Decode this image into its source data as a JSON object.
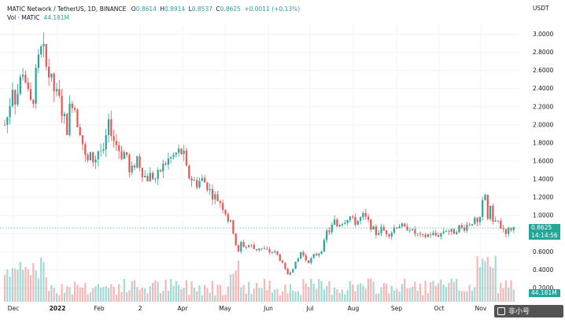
{
  "header": {
    "symbol_line": "MATIC Network / TetherUS, 1D, BINANCE",
    "ohlc": [
      {
        "label": "O",
        "value": "0.8614"
      },
      {
        "label": "H",
        "value": "0.8914"
      },
      {
        "label": "L",
        "value": "0.8537"
      },
      {
        "label": "C",
        "value": "0.8625"
      }
    ],
    "change": "+0.0011 (+0.13%)",
    "volume_label": "Vol · MATIC",
    "volume_value": "44.181M"
  },
  "badges": {
    "price": "0.8625",
    "countdown": "14:14:56",
    "volume": "44.181M"
  },
  "watermark": "非小号",
  "colors": {
    "up": "#26a69a",
    "down": "#ef5350",
    "grid": "#f0f3fa",
    "text": "#131722"
  },
  "chart_data": {
    "type": "candlestick",
    "currency_label": "USDT",
    "y_ticks": [
      "3.0000",
      "2.8000",
      "2.6000",
      "2.4000",
      "2.2000",
      "2.0000",
      "1.8000",
      "1.6000",
      "1.4000",
      "1.2000",
      "1.0000",
      "0.8000",
      "0.6000",
      "0.4000",
      "0.2000"
    ],
    "ylim": [
      0.1,
      3.1
    ],
    "x_ticks": [
      "Dec",
      "2022",
      "Feb",
      "2",
      "Apr",
      "May",
      "Jun",
      "Jul",
      "Aug",
      "Sep",
      "Oct",
      "Nov"
    ],
    "x_tick_bold": [
      false,
      true,
      false,
      false,
      false,
      false,
      false,
      false,
      false,
      false,
      false,
      false
    ],
    "last_price": 0.8625,
    "grid": true,
    "price_anchors": [
      [
        0,
        1.65
      ],
      [
        4,
        1.95
      ],
      [
        10,
        2.1
      ],
      [
        16,
        2.45
      ],
      [
        20,
        2.25
      ],
      [
        26,
        2.5
      ],
      [
        30,
        2.65
      ],
      [
        34,
        2.4
      ],
      [
        38,
        2.2
      ],
      [
        42,
        2.3
      ],
      [
        46,
        2.55
      ],
      [
        50,
        2.75
      ],
      [
        54,
        2.85
      ],
      [
        58,
        2.65
      ],
      [
        62,
        2.55
      ],
      [
        66,
        2.45
      ],
      [
        70,
        2.35
      ],
      [
        76,
        2.25
      ],
      [
        82,
        2.05
      ],
      [
        86,
        1.95
      ],
      [
        90,
        2.3
      ],
      [
        94,
        2.25
      ],
      [
        98,
        2.05
      ],
      [
        102,
        1.95
      ],
      [
        106,
        1.75
      ],
      [
        110,
        1.55
      ],
      [
        114,
        1.65
      ],
      [
        120,
        1.6
      ],
      [
        126,
        1.75
      ],
      [
        132,
        1.65
      ],
      [
        136,
        1.95
      ],
      [
        140,
        2.0
      ],
      [
        144,
        1.85
      ],
      [
        150,
        1.75
      ],
      [
        156,
        1.65
      ],
      [
        160,
        1.75
      ],
      [
        164,
        1.45
      ],
      [
        168,
        1.5
      ],
      [
        174,
        1.65
      ],
      [
        180,
        1.5
      ],
      [
        186,
        1.4
      ],
      [
        192,
        1.45
      ],
      [
        198,
        1.4
      ],
      [
        204,
        1.5
      ],
      [
        212,
        1.6
      ],
      [
        220,
        1.65
      ],
      [
        226,
        1.7
      ],
      [
        230,
        1.7
      ],
      [
        234,
        1.65
      ],
      [
        238,
        1.45
      ],
      [
        244,
        1.4
      ],
      [
        250,
        1.35
      ],
      [
        256,
        1.4
      ],
      [
        262,
        1.35
      ],
      [
        268,
        1.25
      ],
      [
        274,
        1.2
      ],
      [
        280,
        1.15
      ],
      [
        286,
        1.05
      ],
      [
        290,
        0.95
      ],
      [
        294,
        0.9
      ],
      [
        298,
        0.78
      ],
      [
        302,
        0.55
      ],
      [
        306,
        0.7
      ],
      [
        312,
        0.65
      ],
      [
        318,
        0.68
      ],
      [
        324,
        0.62
      ],
      [
        330,
        0.65
      ],
      [
        336,
        0.62
      ],
      [
        342,
        0.6
      ],
      [
        348,
        0.6
      ],
      [
        354,
        0.55
      ],
      [
        358,
        0.48
      ],
      [
        362,
        0.4
      ],
      [
        366,
        0.35
      ],
      [
        370,
        0.4
      ],
      [
        374,
        0.45
      ],
      [
        378,
        0.5
      ],
      [
        382,
        0.6
      ],
      [
        386,
        0.55
      ],
      [
        390,
        0.5
      ],
      [
        394,
        0.5
      ],
      [
        398,
        0.55
      ],
      [
        404,
        0.58
      ],
      [
        408,
        0.62
      ],
      [
        412,
        0.7
      ],
      [
        416,
        0.85
      ],
      [
        420,
        0.82
      ],
      [
        424,
        0.95
      ],
      [
        428,
        0.88
      ],
      [
        432,
        0.92
      ],
      [
        438,
        0.95
      ],
      [
        444,
        1.0
      ],
      [
        450,
        0.92
      ],
      [
        456,
        0.95
      ],
      [
        462,
        1.0
      ],
      [
        466,
        0.95
      ],
      [
        470,
        0.9
      ],
      [
        474,
        0.85
      ],
      [
        478,
        0.8
      ],
      [
        484,
        0.85
      ],
      [
        490,
        0.82
      ],
      [
        496,
        0.8
      ],
      [
        502,
        0.88
      ],
      [
        508,
        0.9
      ],
      [
        514,
        0.85
      ],
      [
        520,
        0.88
      ],
      [
        524,
        0.82
      ],
      [
        528,
        0.8
      ],
      [
        532,
        0.78
      ],
      [
        536,
        0.75
      ],
      [
        542,
        0.78
      ],
      [
        548,
        0.8
      ],
      [
        554,
        0.78
      ],
      [
        560,
        0.8
      ],
      [
        566,
        0.85
      ],
      [
        572,
        0.82
      ],
      [
        578,
        0.82
      ],
      [
        582,
        0.88
      ],
      [
        588,
        0.85
      ],
      [
        594,
        0.9
      ],
      [
        598,
        0.92
      ],
      [
        602,
        0.95
      ],
      [
        606,
        0.9
      ],
      [
        610,
        0.95
      ],
      [
        612,
        1.05
      ],
      [
        615,
        1.25
      ],
      [
        618,
        1.2
      ],
      [
        620,
        0.95
      ],
      [
        622,
        1.1
      ],
      [
        625,
        1.0
      ],
      [
        628,
        0.92
      ],
      [
        632,
        0.95
      ],
      [
        636,
        0.88
      ],
      [
        640,
        0.85
      ],
      [
        644,
        0.82
      ],
      [
        648,
        0.85
      ],
      [
        650,
        0.8625
      ]
    ]
  }
}
